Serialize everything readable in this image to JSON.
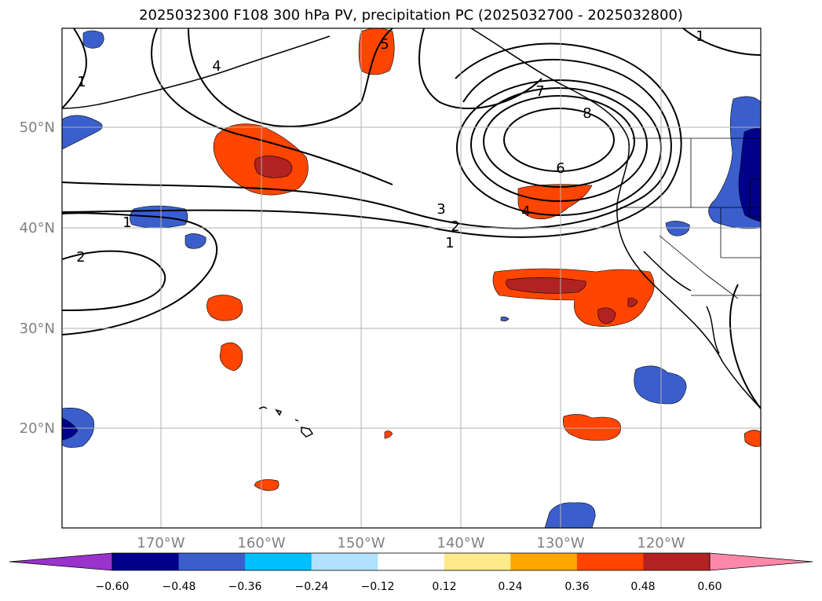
{
  "title": "2025032300 F108 300 hPa PV, precipitation PC (2025032700 - 2025032800)",
  "map": {
    "lat_labels": [
      "50°N",
      "40°N",
      "30°N",
      "20°N"
    ],
    "lon_labels": [
      "170°W",
      "160°W",
      "150°W",
      "140°W",
      "130°W",
      "120°W"
    ],
    "label_color": "#808080",
    "gridlines": true
  },
  "contour_labels": {
    "c1a": "1",
    "c1b": "1",
    "c1c": "1",
    "c2a": "2",
    "c2b": "2",
    "c3": "3",
    "c4a": "4",
    "c4b": "4",
    "c5": "5",
    "c6": "6",
    "c7": "7",
    "c8": "8",
    "c1d": "1"
  },
  "colorbar": {
    "ticks": [
      "−0.60",
      "−0.48",
      "−0.36",
      "−0.24",
      "−0.12",
      "0.12",
      "0.24",
      "0.36",
      "0.48",
      "0.60"
    ],
    "colors": [
      "#9933cc",
      "#00008b",
      "#3a5fcd",
      "#00bfff",
      "#b0e2ff",
      "#ffffff",
      "#fce98a",
      "#ffa500",
      "#ff4500",
      "#b22222",
      "#ff88aa"
    ]
  }
}
